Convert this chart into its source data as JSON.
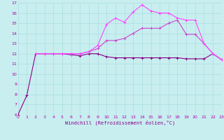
{
  "title": "",
  "xlabel": "Windchill (Refroidissement éolien,°C)",
  "bg_color": "#c8eef0",
  "grid_color": "#aadddf",
  "line_colors": [
    "#cc44cc",
    "#880088",
    "#ff44ff"
  ],
  "xlim": [
    0,
    23
  ],
  "ylim": [
    6,
    17
  ],
  "xticks": [
    0,
    1,
    2,
    3,
    4,
    5,
    6,
    7,
    8,
    9,
    10,
    11,
    12,
    13,
    14,
    15,
    16,
    17,
    18,
    19,
    20,
    21,
    22,
    23
  ],
  "yticks": [
    6,
    7,
    8,
    9,
    10,
    11,
    12,
    13,
    14,
    15,
    16,
    17
  ],
  "line1_x": [
    0,
    1,
    2,
    3,
    4,
    5,
    6,
    7,
    8,
    9,
    10,
    11,
    12,
    13,
    14,
    15,
    16,
    17,
    18,
    19,
    20,
    21,
    22,
    23
  ],
  "line1_y": [
    6.0,
    7.9,
    12.0,
    12.0,
    12.0,
    12.0,
    11.9,
    11.8,
    12.0,
    12.0,
    11.7,
    11.6,
    11.6,
    11.6,
    11.6,
    11.6,
    11.6,
    11.6,
    11.6,
    11.5,
    11.5,
    11.5,
    12.0,
    11.4
  ],
  "line2_x": [
    2,
    3,
    4,
    5,
    6,
    7,
    8,
    9,
    10,
    11,
    12,
    13,
    14,
    15,
    16,
    17,
    18,
    19,
    20,
    21,
    22,
    23
  ],
  "line2_y": [
    12.0,
    12.0,
    12.0,
    12.0,
    12.0,
    12.0,
    12.2,
    12.5,
    13.3,
    13.3,
    13.5,
    14.0,
    14.5,
    14.5,
    14.5,
    15.0,
    15.3,
    13.9,
    13.9,
    13.0,
    12.0,
    11.4
  ],
  "line3_x": [
    2,
    3,
    4,
    5,
    6,
    7,
    8,
    9,
    10,
    11,
    12,
    13,
    14,
    15,
    16,
    17,
    18,
    19,
    20,
    21,
    22,
    23
  ],
  "line3_y": [
    12.0,
    12.0,
    12.0,
    12.0,
    12.0,
    12.0,
    12.2,
    12.8,
    14.9,
    15.5,
    15.1,
    16.1,
    16.8,
    16.2,
    16.0,
    16.0,
    15.5,
    15.3,
    15.3,
    13.0,
    12.0,
    11.4
  ],
  "tick_color": "#aa00aa",
  "xlabel_color": "#880088",
  "xlabel_fontsize": 5.0,
  "tick_fontsize": 4.5,
  "linewidth": 0.8,
  "markersize": 2.5,
  "markeredgewidth": 0.7
}
